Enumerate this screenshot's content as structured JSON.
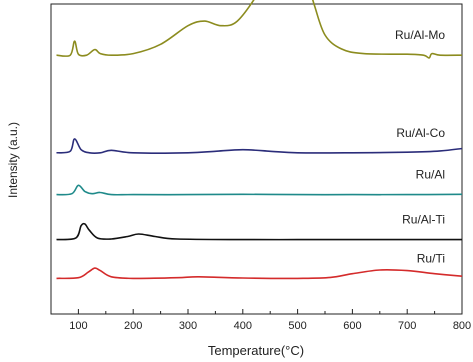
{
  "chart_data": {
    "type": "line",
    "xlabel": "Temperature(°C)",
    "ylabel": "Intensity (a.u.)",
    "xlim": [
      50,
      800
    ],
    "xticks": [
      100,
      200,
      300,
      400,
      500,
      600,
      700,
      800
    ],
    "y_tick_labels": "none",
    "grid": false,
    "legend": "none",
    "series": [
      {
        "name": "Ru/Al-Mo",
        "color": "#8c8c1f",
        "baseline": 0.835,
        "points": [
          [
            60,
            0.835
          ],
          [
            85,
            0.835
          ],
          [
            93,
            0.88
          ],
          [
            100,
            0.838
          ],
          [
            115,
            0.835
          ],
          [
            130,
            0.853
          ],
          [
            140,
            0.84
          ],
          [
            160,
            0.835
          ],
          [
            200,
            0.84
          ],
          [
            250,
            0.87
          ],
          [
            300,
            0.93
          ],
          [
            330,
            0.945
          ],
          [
            360,
            0.93
          ],
          [
            390,
            0.945
          ],
          [
            430,
            1.04
          ],
          [
            460,
            1.14
          ],
          [
            485,
            1.18
          ],
          [
            505,
            1.15
          ],
          [
            530,
            1.0
          ],
          [
            550,
            0.9
          ],
          [
            580,
            0.855
          ],
          [
            620,
            0.84
          ],
          [
            700,
            0.838
          ],
          [
            730,
            0.835
          ],
          [
            740,
            0.826
          ],
          [
            745,
            0.84
          ],
          [
            760,
            0.835
          ],
          [
            800,
            0.835
          ]
        ]
      },
      {
        "name": "Ru/Al-Co",
        "color": "#2b2d7a",
        "baseline": 0.52,
        "points": [
          [
            60,
            0.52
          ],
          [
            85,
            0.525
          ],
          [
            93,
            0.565
          ],
          [
            105,
            0.53
          ],
          [
            120,
            0.52
          ],
          [
            140,
            0.52
          ],
          [
            160,
            0.528
          ],
          [
            200,
            0.52
          ],
          [
            300,
            0.52
          ],
          [
            350,
            0.525
          ],
          [
            400,
            0.53
          ],
          [
            450,
            0.525
          ],
          [
            500,
            0.52
          ],
          [
            600,
            0.52
          ],
          [
            700,
            0.522
          ],
          [
            760,
            0.526
          ],
          [
            800,
            0.534
          ]
        ]
      },
      {
        "name": "Ru/Al",
        "color": "#1f8a8a",
        "baseline": 0.385,
        "points": [
          [
            60,
            0.385
          ],
          [
            88,
            0.388
          ],
          [
            100,
            0.415
          ],
          [
            112,
            0.395
          ],
          [
            125,
            0.388
          ],
          [
            140,
            0.392
          ],
          [
            160,
            0.385
          ],
          [
            200,
            0.385
          ],
          [
            300,
            0.385
          ],
          [
            400,
            0.386
          ],
          [
            500,
            0.385
          ],
          [
            600,
            0.385
          ],
          [
            700,
            0.385
          ],
          [
            800,
            0.386
          ]
        ]
      },
      {
        "name": "Ru/Al-Ti",
        "color": "#111111",
        "baseline": 0.24,
        "points": [
          [
            60,
            0.24
          ],
          [
            95,
            0.245
          ],
          [
            105,
            0.285
          ],
          [
            112,
            0.29
          ],
          [
            120,
            0.27
          ],
          [
            135,
            0.245
          ],
          [
            160,
            0.242
          ],
          [
            190,
            0.25
          ],
          [
            210,
            0.258
          ],
          [
            240,
            0.25
          ],
          [
            280,
            0.242
          ],
          [
            400,
            0.24
          ],
          [
            500,
            0.24
          ],
          [
            600,
            0.24
          ],
          [
            700,
            0.24
          ],
          [
            800,
            0.24
          ]
        ]
      },
      {
        "name": "Ru/Ti",
        "color": "#d42b2b",
        "baseline": 0.115,
        "points": [
          [
            60,
            0.115
          ],
          [
            100,
            0.117
          ],
          [
            118,
            0.135
          ],
          [
            130,
            0.148
          ],
          [
            140,
            0.14
          ],
          [
            160,
            0.12
          ],
          [
            200,
            0.115
          ],
          [
            280,
            0.117
          ],
          [
            320,
            0.12
          ],
          [
            400,
            0.116
          ],
          [
            500,
            0.115
          ],
          [
            560,
            0.118
          ],
          [
            600,
            0.13
          ],
          [
            650,
            0.142
          ],
          [
            700,
            0.14
          ],
          [
            750,
            0.13
          ],
          [
            800,
            0.122
          ]
        ]
      }
    ]
  }
}
